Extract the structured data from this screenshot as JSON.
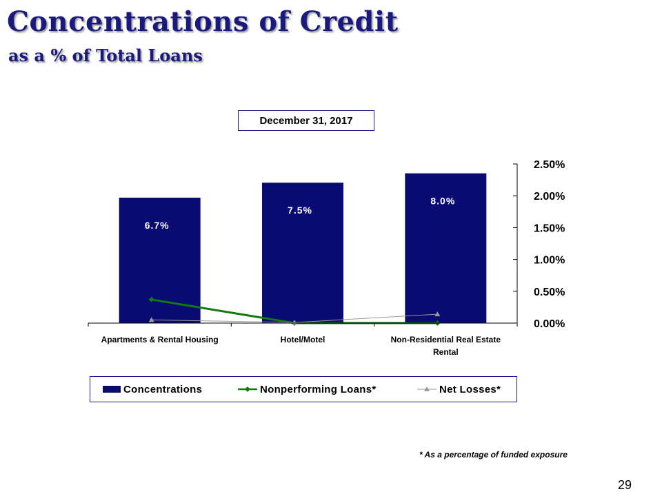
{
  "slide": {
    "title": "Concentrations of Credit",
    "subtitle": "as a % of Total Loans",
    "footnote": "* As a percentage of funded exposure",
    "page_number": "29"
  },
  "chart_data": {
    "type": "bar",
    "title": "December 31, 2017",
    "categories": [
      "Apartments & Rental Housing",
      "Hotel/Motel",
      "Non-Residential Real Estate Rental"
    ],
    "category_lines": [
      [
        "Apartments & Rental Housing"
      ],
      [
        "Hotel/Motel"
      ],
      [
        "Non-Residential Real Estate",
        "Rental"
      ]
    ],
    "series": [
      {
        "name": "Concentrations",
        "kind": "bar",
        "values": [
          6.7,
          7.5,
          8.0
        ],
        "labels": [
          "6.7%",
          "7.5%",
          "8.0%"
        ],
        "color": "#0a0a73"
      },
      {
        "name": "Nonperforming Loans*",
        "kind": "line",
        "axis": "right",
        "values": [
          0.37,
          0.0,
          0.0
        ],
        "color": "#117a11"
      },
      {
        "name": "Net Losses*",
        "kind": "line",
        "axis": "right",
        "values": [
          0.05,
          0.01,
          0.14
        ],
        "color": "#9a9a9a"
      }
    ],
    "bar_axis_max": 8.5,
    "y_right": {
      "ylim": [
        0,
        2.5
      ],
      "ticks": [
        "0.00%",
        "0.50%",
        "1.00%",
        "1.50%",
        "2.00%",
        "2.50%"
      ]
    },
    "legend_position": "bottom",
    "grid": false
  }
}
